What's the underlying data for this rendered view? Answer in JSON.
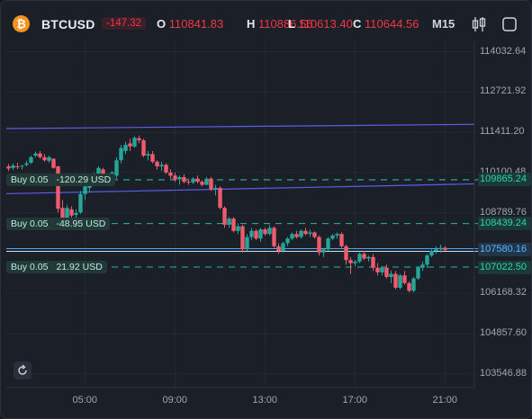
{
  "header": {
    "symbol": "BTCUSD",
    "change": "-147.32",
    "open_key": "O",
    "open": "110841.83",
    "high_key": "H",
    "high": "110886.56",
    "low_key": "L",
    "low": "110613.40",
    "close_key": "C",
    "close": "110644.56",
    "timeframe": "M15",
    "icons": [
      "bitcoin-icon",
      "candles-icon",
      "fullscreen-icon"
    ]
  },
  "price_axis": [
    "114032.64",
    "112721.92",
    "111411.20",
    "110100.48",
    "108789.76",
    "107479.04",
    "106168.32",
    "104857.60",
    "103546.88"
  ],
  "price_labels": {
    "order_1": "109865.24",
    "order_2": "108439.24",
    "current": "107580.16",
    "order_3": "107022.50"
  },
  "time_axis": [
    "05:00",
    "09:00",
    "13:00",
    "17:00",
    "21:00"
  ],
  "orders": [
    {
      "side": "Buy 0.05",
      "pnl": "-120.29 USD",
      "price": 109865.24
    },
    {
      "side": "Buy 0.05",
      "pnl": "-48.95 USD",
      "price": 108439.24
    },
    {
      "side": "Buy 0.05",
      "pnl": "21.92 USD",
      "price": 107022.5
    }
  ],
  "colors": {
    "up": "#26a69a",
    "down": "#ef5b6e",
    "order_line": "#2ab7a1",
    "trendline": "#5b5ee8",
    "current_line": "#43a6ff"
  },
  "chart_data": {
    "type": "candlestick",
    "ylim": [
      103100,
      114400
    ],
    "x_range": [
      1.5,
      22.3
    ],
    "trendlines": [
      {
        "x": [
          1.5,
          22.3
        ],
        "y": [
          111530,
          111670
        ]
      },
      {
        "x": [
          1.5,
          22.3
        ],
        "y": [
          109410,
          109730
        ]
      }
    ],
    "current_price": 107580.16,
    "candles": [
      [
        1.6,
        110300,
        110380,
        110150,
        110230
      ],
      [
        1.8,
        110250,
        110400,
        110180,
        110330
      ],
      [
        2.0,
        110300,
        110420,
        110210,
        110280
      ],
      [
        2.2,
        110300,
        110350,
        110200,
        110320
      ],
      [
        2.4,
        110350,
        110480,
        110300,
        110400
      ],
      [
        2.6,
        110420,
        110650,
        110380,
        110600
      ],
      [
        2.8,
        110650,
        110780,
        110600,
        110720
      ],
      [
        3.0,
        110720,
        110800,
        110550,
        110600
      ],
      [
        3.2,
        110600,
        110700,
        110450,
        110500
      ],
      [
        3.4,
        110480,
        110650,
        110420,
        110600
      ],
      [
        3.6,
        110550,
        110560,
        110230,
        110250
      ],
      [
        3.8,
        110300,
        110320,
        108800,
        108920
      ],
      [
        4.0,
        108950,
        109200,
        108300,
        108450
      ],
      [
        4.2,
        108500,
        109050,
        108450,
        108950
      ],
      [
        4.4,
        108900,
        109000,
        108550,
        108700
      ],
      [
        4.6,
        108720,
        108900,
        108600,
        108780
      ],
      [
        4.8,
        108800,
        109500,
        108750,
        109400
      ],
      [
        5.0,
        109400,
        109700,
        109200,
        109650
      ],
      [
        5.2,
        109600,
        109800,
        109450,
        109700
      ],
      [
        5.4,
        109700,
        110100,
        109650,
        110050
      ],
      [
        5.6,
        110050,
        110300,
        110000,
        110250
      ],
      [
        5.8,
        110200,
        110250,
        109750,
        109820
      ],
      [
        6.0,
        109820,
        110000,
        109700,
        109950
      ],
      [
        6.2,
        109900,
        110150,
        109850,
        110100
      ],
      [
        6.4,
        110000,
        110600,
        109900,
        110500
      ],
      [
        6.6,
        110500,
        111000,
        110400,
        110900
      ],
      [
        6.8,
        110800,
        111100,
        110700,
        111000
      ],
      [
        7.0,
        111050,
        111200,
        110800,
        110950
      ],
      [
        7.2,
        110950,
        111280,
        110900,
        111230
      ],
      [
        7.4,
        111220,
        111300,
        111050,
        111150
      ],
      [
        7.6,
        111150,
        111200,
        110600,
        110650
      ],
      [
        7.8,
        110650,
        110800,
        110500,
        110700
      ],
      [
        8.0,
        110700,
        110800,
        110400,
        110450
      ],
      [
        8.2,
        110450,
        110500,
        110200,
        110300
      ],
      [
        8.4,
        110300,
        110450,
        110150,
        110350
      ],
      [
        8.6,
        110350,
        110400,
        110050,
        110100
      ],
      [
        8.8,
        110100,
        110200,
        109900,
        110000
      ],
      [
        9.0,
        110000,
        110100,
        109800,
        109880
      ],
      [
        9.2,
        109880,
        110000,
        109700,
        109950
      ],
      [
        9.4,
        109950,
        110050,
        109750,
        109800
      ],
      [
        9.6,
        109800,
        109900,
        109700,
        109780
      ],
      [
        9.8,
        109780,
        109950,
        109720,
        109900
      ],
      [
        10.0,
        109900,
        110000,
        109750,
        109800
      ],
      [
        10.2,
        109800,
        109850,
        109650,
        109700
      ],
      [
        10.4,
        109700,
        109950,
        109680,
        109900
      ],
      [
        10.6,
        109900,
        109950,
        109500,
        109550
      ],
      [
        10.8,
        109550,
        109700,
        109350,
        109600
      ],
      [
        11.0,
        109600,
        109650,
        108900,
        108950
      ],
      [
        11.2,
        108950,
        109000,
        108300,
        108400
      ],
      [
        11.4,
        108400,
        108650,
        108300,
        108600
      ],
      [
        11.6,
        108600,
        108650,
        108150,
        108200
      ],
      [
        11.8,
        108200,
        108450,
        108100,
        108350
      ],
      [
        12.0,
        108350,
        108400,
        107500,
        107600
      ],
      [
        12.2,
        107600,
        108100,
        107550,
        108000
      ],
      [
        12.4,
        108000,
        108300,
        107900,
        108200
      ],
      [
        12.6,
        108200,
        108250,
        107900,
        107950
      ],
      [
        12.8,
        107950,
        108300,
        107850,
        108250
      ],
      [
        13.0,
        108250,
        108300,
        108050,
        108100
      ],
      [
        13.2,
        108100,
        108400,
        108050,
        108300
      ],
      [
        13.4,
        108300,
        108350,
        107650,
        107700
      ],
      [
        13.6,
        107700,
        107800,
        107450,
        107550
      ],
      [
        13.8,
        107550,
        107850,
        107500,
        107800
      ],
      [
        14.0,
        107800,
        108000,
        107700,
        107950
      ],
      [
        14.2,
        107950,
        108150,
        107900,
        108100
      ],
      [
        14.4,
        108100,
        108200,
        107950,
        108000
      ],
      [
        14.6,
        108000,
        108250,
        107950,
        108200
      ],
      [
        14.8,
        108200,
        108300,
        108050,
        108100
      ],
      [
        15.0,
        108100,
        108250,
        108000,
        108150
      ],
      [
        15.2,
        108150,
        108180,
        107950,
        108000
      ],
      [
        15.4,
        108000,
        108050,
        107400,
        107500
      ],
      [
        15.6,
        107500,
        107650,
        107350,
        107600
      ],
      [
        15.8,
        107600,
        108000,
        107550,
        107950
      ],
      [
        16.0,
        107950,
        108100,
        107900,
        108050
      ],
      [
        16.2,
        108050,
        108150,
        107950,
        108100
      ],
      [
        16.4,
        108100,
        108150,
        107650,
        107700
      ],
      [
        16.6,
        107700,
        107750,
        107100,
        107250
      ],
      [
        16.8,
        107250,
        107350,
        106800,
        107150
      ],
      [
        17.0,
        107150,
        107250,
        107050,
        107200
      ],
      [
        17.2,
        107200,
        107500,
        107150,
        107450
      ],
      [
        17.4,
        107450,
        107550,
        107250,
        107300
      ],
      [
        17.6,
        107300,
        107400,
        107200,
        107350
      ],
      [
        17.8,
        107350,
        107450,
        106900,
        107000
      ],
      [
        18.0,
        107000,
        107150,
        106750,
        106850
      ],
      [
        18.2,
        106850,
        107050,
        106750,
        107000
      ],
      [
        18.4,
        107000,
        107100,
        106650,
        106700
      ],
      [
        18.6,
        106700,
        106900,
        106500,
        106800
      ],
      [
        18.8,
        106800,
        106900,
        106300,
        106350
      ],
      [
        19.0,
        106350,
        106800,
        106300,
        106750
      ],
      [
        19.2,
        106750,
        106900,
        106450,
        106500
      ],
      [
        19.4,
        106500,
        106550,
        106200,
        106250
      ],
      [
        19.6,
        106250,
        106700,
        106200,
        106650
      ],
      [
        19.8,
        106650,
        107050,
        106600,
        107000
      ],
      [
        20.0,
        107000,
        107200,
        106900,
        107100
      ],
      [
        20.2,
        107100,
        107450,
        107000,
        107400
      ],
      [
        20.4,
        107400,
        107600,
        107350,
        107550
      ],
      [
        20.6,
        107550,
        107700,
        107450,
        107600
      ],
      [
        20.8,
        107600,
        107750,
        107500,
        107650
      ],
      [
        21.0,
        107650,
        107700,
        107550,
        107580
      ]
    ]
  }
}
